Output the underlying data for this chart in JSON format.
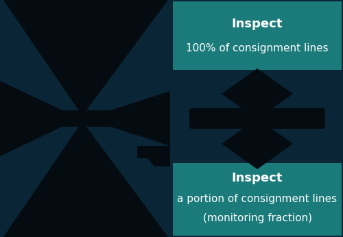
{
  "bg_color": "#0a2535",
  "teal_box_color": "#1b7b7b",
  "black_color": "#040c12",
  "white_text_color": "#ffffff",
  "top_box": {
    "line1": "Inspect",
    "line2": "100% of consignment lines"
  },
  "bottom_box": {
    "line1": "Inspect",
    "line2": "a portion of consignment lines",
    "line3": "(monitoring fraction)"
  },
  "figsize": [
    5.0,
    3.46
  ],
  "dpi": 100
}
